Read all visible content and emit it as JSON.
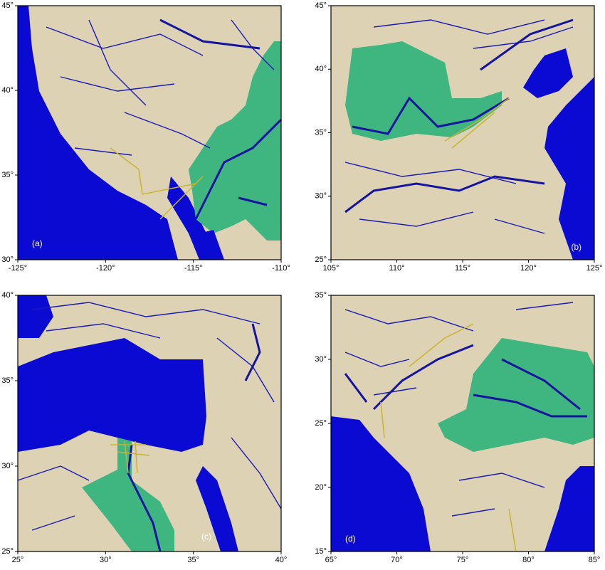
{
  "panels": [
    {
      "label": "(a)",
      "xlim": [
        -125,
        -110
      ],
      "ylim": [
        30,
        45
      ],
      "xticks": [
        {
          "value": -125,
          "label": "-125°"
        },
        {
          "value": -120,
          "label": "-120°"
        },
        {
          "value": -115,
          "label": "-115°"
        },
        {
          "value": -110,
          "label": "-110°"
        }
      ],
      "yticks": [
        {
          "value": 30,
          "label": "30°"
        },
        {
          "value": 35,
          "label": "35°"
        },
        {
          "value": 40,
          "label": "40°"
        },
        {
          "value": 45,
          "label": "45°"
        }
      ]
    },
    {
      "label": "(b)",
      "xlim": [
        105,
        125
      ],
      "ylim": [
        25,
        45
      ],
      "xticks": [
        {
          "value": 105,
          "label": "105°"
        },
        {
          "value": 110,
          "label": "110°"
        },
        {
          "value": 115,
          "label": "115°"
        },
        {
          "value": 120,
          "label": "120°"
        },
        {
          "value": 125,
          "label": "125°"
        }
      ],
      "yticks": [
        {
          "value": 25,
          "label": "25°"
        },
        {
          "value": 30,
          "label": "30°"
        },
        {
          "value": 35,
          "label": "35°"
        },
        {
          "value": 40,
          "label": "40°"
        },
        {
          "value": 45,
          "label": "45°"
        }
      ]
    },
    {
      "label": "(c)",
      "xlim": [
        25,
        40
      ],
      "ylim": [
        25,
        40
      ],
      "xticks": [
        {
          "value": 25,
          "label": "25°"
        },
        {
          "value": 30,
          "label": "30°"
        },
        {
          "value": 35,
          "label": "35°"
        },
        {
          "value": 40,
          "label": "40°"
        }
      ],
      "yticks": [
        {
          "value": 25,
          "label": "25°"
        },
        {
          "value": 30,
          "label": "30°"
        },
        {
          "value": 35,
          "label": "35°"
        },
        {
          "value": 40,
          "label": "40°"
        }
      ]
    },
    {
      "label": "(d)",
      "xlim": [
        65,
        85
      ],
      "ylim": [
        15,
        35
      ],
      "xticks": [
        {
          "value": 65,
          "label": "65°"
        },
        {
          "value": 70,
          "label": "70°"
        },
        {
          "value": 75,
          "label": "75°"
        },
        {
          "value": 80,
          "label": "80°"
        },
        {
          "value": 85,
          "label": "85°"
        }
      ],
      "yticks": [
        {
          "value": 15,
          "label": "15°"
        },
        {
          "value": 20,
          "label": "20°"
        },
        {
          "value": 25,
          "label": "25°"
        },
        {
          "value": 30,
          "label": "30°"
        },
        {
          "value": 35,
          "label": "35°"
        }
      ]
    }
  ]
}
